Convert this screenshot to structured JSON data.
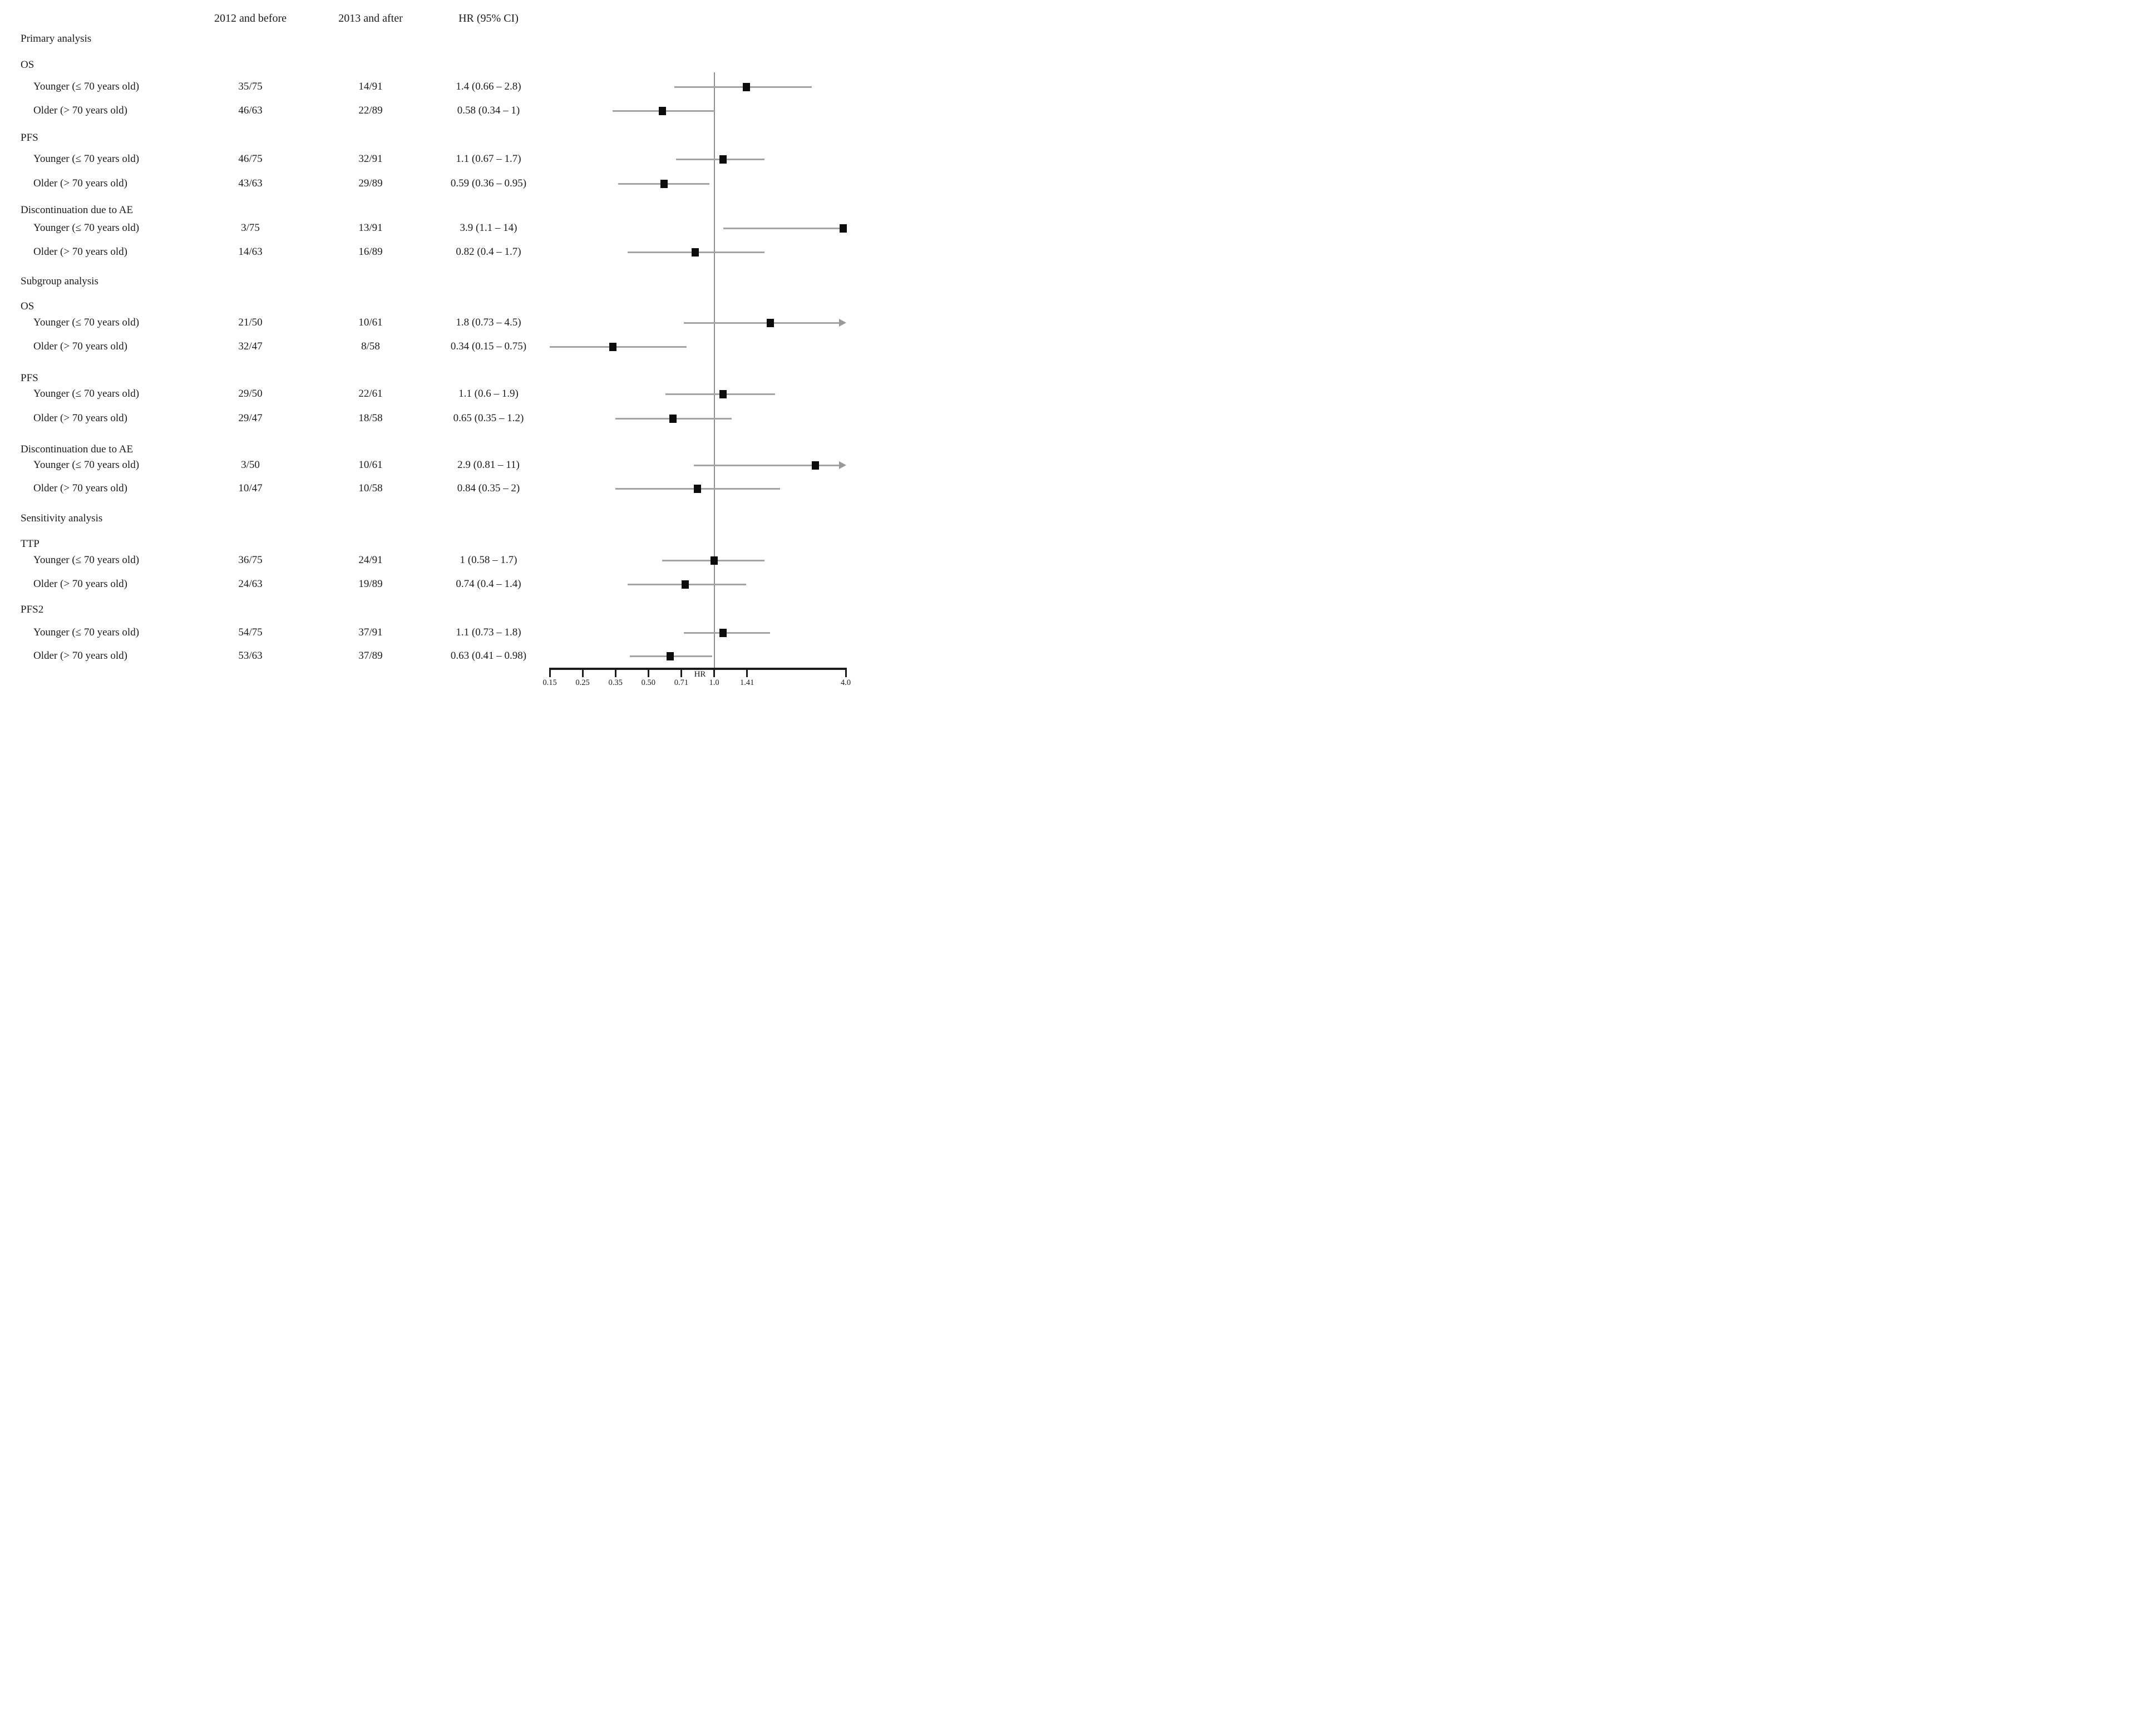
{
  "header": {
    "col_2012": "2012 and before",
    "col_2013": "2013 and after",
    "col_hr": "HR (95% CI)"
  },
  "colors": {
    "text": "#1b1b1b",
    "ci_line": "#a6a2a2",
    "arrow": "#9c9898",
    "marker": "#0c0c0c",
    "reference_line": "#8f8f8f",
    "axis": "#1b1b1b"
  },
  "chart_data": {
    "type": "scatter",
    "variant": "forest-plot",
    "title": "",
    "xlabel": "HR",
    "ylabel": "",
    "xlim": [
      0.15,
      4.0
    ],
    "x_scale": "log",
    "grid": false,
    "legend": false,
    "reference_line": 1.0,
    "axis_tick_labels": [
      "0.15",
      "0.25",
      "0.35",
      "0.50",
      "0.71",
      "1.0",
      "1.41",
      "4.0"
    ],
    "axis_tick_values": [
      0.15,
      0.25,
      0.35,
      0.5,
      0.71,
      1.0,
      1.41,
      4.0
    ],
    "rows": [
      {
        "kind": "section",
        "label": "Primary analysis"
      },
      {
        "kind": "outcome",
        "label": "OS"
      },
      {
        "kind": "data",
        "label": "Younger (≤ 70 years old)",
        "events_2012": "35/75",
        "events_2013": "14/91",
        "hr_text": "1.4 (0.66 – 2.8)",
        "hr": 1.4,
        "ci_low": 0.66,
        "ci_high": 2.8,
        "arrow": ""
      },
      {
        "kind": "data",
        "label": "Older (> 70 years old)",
        "events_2012": "46/63",
        "events_2013": "22/89",
        "hr_text": "0.58 (0.34 – 1)",
        "hr": 0.58,
        "ci_low": 0.34,
        "ci_high": 1.0,
        "arrow": ""
      },
      {
        "kind": "outcome",
        "label": "PFS"
      },
      {
        "kind": "data",
        "label": "Younger (≤ 70 years old)",
        "events_2012": "46/75",
        "events_2013": "32/91",
        "hr_text": "1.1 (0.67 – 1.7)",
        "hr": 1.1,
        "ci_low": 0.67,
        "ci_high": 1.7,
        "arrow": ""
      },
      {
        "kind": "data",
        "label": "Older (> 70 years old)",
        "events_2012": "43/63",
        "events_2013": "29/89",
        "hr_text": "0.59 (0.36 – 0.95)",
        "hr": 0.59,
        "ci_low": 0.36,
        "ci_high": 0.95,
        "arrow": ""
      },
      {
        "kind": "outcome",
        "label": "Discontinuation due to AE"
      },
      {
        "kind": "data",
        "label": "Younger (≤ 70 years old)",
        "events_2012": "3/75",
        "events_2013": "13/91",
        "hr_text": "3.9 (1.1 – 14)",
        "hr": 3.9,
        "ci_low": 1.1,
        "ci_high": 14,
        "arrow": ""
      },
      {
        "kind": "data",
        "label": "Older (> 70 years old)",
        "events_2012": "14/63",
        "events_2013": "16/89",
        "hr_text": "0.82 (0.4 – 1.7)",
        "hr": 0.82,
        "ci_low": 0.4,
        "ci_high": 1.7,
        "arrow": ""
      },
      {
        "kind": "section",
        "label": "Subgroup analysis"
      },
      {
        "kind": "outcome",
        "label": "OS"
      },
      {
        "kind": "data",
        "label": "Younger (≤ 70 years old)",
        "events_2012": "21/50",
        "events_2013": "10/61",
        "hr_text": "1.8 (0.73 – 4.5)",
        "hr": 1.8,
        "ci_low": 0.73,
        "ci_high": 4.5,
        "arrow": "right"
      },
      {
        "kind": "data",
        "label": "Older (> 70 years old)",
        "events_2012": "32/47",
        "events_2013": "8/58",
        "hr_text": "0.34 (0.15 – 0.75)",
        "hr": 0.34,
        "ci_low": 0.15,
        "ci_high": 0.75,
        "arrow": ""
      },
      {
        "kind": "outcome",
        "label": "PFS"
      },
      {
        "kind": "data",
        "label": "Younger (≤ 70 years old)",
        "events_2012": "29/50",
        "events_2013": "22/61",
        "hr_text": "1.1 (0.6 – 1.9)",
        "hr": 1.1,
        "ci_low": 0.6,
        "ci_high": 1.9,
        "arrow": ""
      },
      {
        "kind": "data",
        "label": "Older (> 70 years old)",
        "events_2012": "29/47",
        "events_2013": "18/58",
        "hr_text": "0.65 (0.35 – 1.2)",
        "hr": 0.65,
        "ci_low": 0.35,
        "ci_high": 1.2,
        "arrow": ""
      },
      {
        "kind": "outcome",
        "label": "Discontinuation due to AE"
      },
      {
        "kind": "data",
        "label": "Younger (≤ 70 years old)",
        "events_2012": "3/50",
        "events_2013": "10/61",
        "hr_text": "2.9 (0.81 – 11)",
        "hr": 2.9,
        "ci_low": 0.81,
        "ci_high": 11,
        "arrow": "right"
      },
      {
        "kind": "data",
        "label": "Older (> 70 years old)",
        "events_2012": "10/47",
        "events_2013": "10/58",
        "hr_text": "0.84 (0.35 – 2)",
        "hr": 0.84,
        "ci_low": 0.35,
        "ci_high": 2,
        "arrow": ""
      },
      {
        "kind": "section",
        "label": "Sensitivity analysis"
      },
      {
        "kind": "outcome",
        "label": "TTP"
      },
      {
        "kind": "data",
        "label": "Younger (≤ 70 years old)",
        "events_2012": "36/75",
        "events_2013": "24/91",
        "hr_text": "1 (0.58 – 1.7)",
        "hr": 1.0,
        "ci_low": 0.58,
        "ci_high": 1.7,
        "arrow": ""
      },
      {
        "kind": "data",
        "label": "Older (> 70 years old)",
        "events_2012": "24/63",
        "events_2013": "19/89",
        "hr_text": "0.74 (0.4 – 1.4)",
        "hr": 0.74,
        "ci_low": 0.4,
        "ci_high": 1.4,
        "arrow": ""
      },
      {
        "kind": "outcome",
        "label": "PFS2"
      },
      {
        "kind": "data",
        "label": "Younger (≤ 70 years old)",
        "events_2012": "54/75",
        "events_2013": "37/91",
        "hr_text": "1.1 (0.73 – 1.8)",
        "hr": 1.1,
        "ci_low": 0.73,
        "ci_high": 1.8,
        "arrow": ""
      },
      {
        "kind": "data",
        "label": "Older (> 70 years old)",
        "events_2012": "53/63",
        "events_2013": "37/89",
        "hr_text": "0.63 (0.41 – 0.98)",
        "hr": 0.63,
        "ci_low": 0.41,
        "ci_high": 0.98,
        "arrow": ""
      }
    ]
  }
}
